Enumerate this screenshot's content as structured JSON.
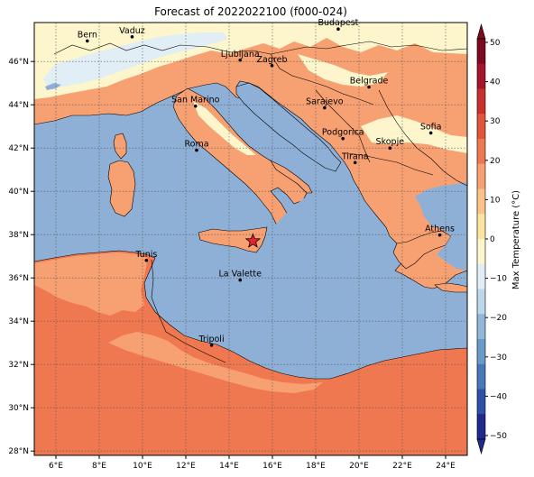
{
  "title": "Forecast of 2022022100 (f000-024)",
  "map": {
    "lon_range": [
      5,
      25
    ],
    "lat_range": [
      27.8,
      47.8
    ],
    "x_ticks": [
      "6°E",
      "8°E",
      "10°E",
      "12°E",
      "14°E",
      "16°E",
      "18°E",
      "20°E",
      "22°E",
      "24°E"
    ],
    "y_ticks": [
      "28°N",
      "30°N",
      "32°N",
      "34°N",
      "36°N",
      "38°N",
      "40°N",
      "42°N",
      "44°N",
      "46°N"
    ],
    "gridlines": true,
    "marker": {
      "shape": "star",
      "color": "#e8232a",
      "lon": 15.1,
      "lat": 37.7
    }
  },
  "cities": [
    {
      "name": "Bern",
      "lon": 7.45,
      "lat": 46.95
    },
    {
      "name": "Vaduz",
      "lon": 9.52,
      "lat": 47.14
    },
    {
      "name": "Budapest",
      "lon": 19.04,
      "lat": 47.5
    },
    {
      "name": "Ljubljana",
      "lon": 14.51,
      "lat": 46.06
    },
    {
      "name": "Zagreb",
      "lon": 15.98,
      "lat": 45.81
    },
    {
      "name": "Belgrade",
      "lon": 20.46,
      "lat": 44.82
    },
    {
      "name": "San Marino",
      "lon": 12.45,
      "lat": 43.94
    },
    {
      "name": "Sarajevo",
      "lon": 18.41,
      "lat": 43.86
    },
    {
      "name": "Sofia",
      "lon": 23.32,
      "lat": 42.7
    },
    {
      "name": "Podgorica",
      "lon": 19.26,
      "lat": 42.44
    },
    {
      "name": "Skopje",
      "lon": 21.43,
      "lat": 42.0
    },
    {
      "name": "Roma",
      "lon": 12.5,
      "lat": 41.9
    },
    {
      "name": "Tirana",
      "lon": 19.82,
      "lat": 41.33
    },
    {
      "name": "Athens",
      "lon": 23.73,
      "lat": 37.98
    },
    {
      "name": "Tunis",
      "lon": 10.18,
      "lat": 36.81
    },
    {
      "name": "La Valette",
      "lon": 14.51,
      "lat": 35.9
    },
    {
      "name": "Tripoli",
      "lon": 13.19,
      "lat": 32.89
    }
  ],
  "colorbar": {
    "label": "Max Temperature (°C)",
    "ticks": [
      "50",
      "40",
      "30",
      "20",
      "10",
      "0",
      "−10",
      "−20",
      "−30",
      "−40",
      "−50"
    ],
    "colors": [
      "#1e2a8c",
      "#3050a8",
      "#4878b8",
      "#6a9ac8",
      "#92b6d8",
      "#bcd6ea",
      "#e2eef6",
      "#fdf6cc",
      "#fde3a0",
      "#fcc28a",
      "#f7a072",
      "#f07850",
      "#e0553c",
      "#c9302c",
      "#a6162a",
      "#7d0a20"
    ]
  },
  "fills": {
    "sea": "#8fb0d6",
    "cold": "#e2eef6",
    "mild": "#fdf6cc",
    "warm": "#f7a072",
    "hot": "#f07850"
  }
}
